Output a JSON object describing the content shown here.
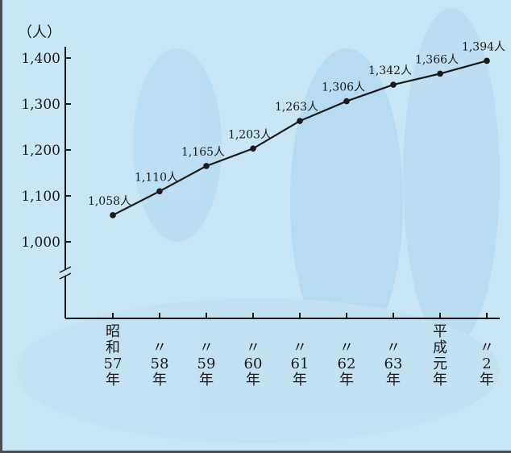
{
  "chart_data": {
    "type": "line",
    "unit": "（人）",
    "categories": [
      "昭和57年",
      "〃58年",
      "〃59年",
      "〃60年",
      "〃61年",
      "〃62年",
      "〃63年",
      "平成元年",
      "〃2年"
    ],
    "category_lines": [
      [
        "昭",
        "和",
        "57",
        "年"
      ],
      [
        "〃",
        "58",
        "年"
      ],
      [
        "〃",
        "59",
        "年"
      ],
      [
        "〃",
        "60",
        "年"
      ],
      [
        "〃",
        "61",
        "年"
      ],
      [
        "〃",
        "62",
        "年"
      ],
      [
        "〃",
        "63",
        "年"
      ],
      [
        "平",
        "成",
        "元",
        "年"
      ],
      [
        "〃",
        "2",
        "年"
      ]
    ],
    "values": [
      1058,
      1110,
      1165,
      1203,
      1263,
      1306,
      1342,
      1366,
      1394
    ],
    "data_labels": [
      "1,058人",
      "1,110人",
      "1,165人",
      "1,203人",
      "1,263人",
      "1,306人",
      "1,342人",
      "1,366人",
      "1,394人"
    ],
    "yticks": [
      1000,
      1100,
      1200,
      1300,
      1400
    ],
    "ytick_labels": [
      "1,000",
      "1,100",
      "1,200",
      "1,300",
      "1,400"
    ],
    "ylim": [
      1000,
      1400
    ],
    "axis_break": true,
    "grid": false,
    "colors": {
      "line": "#1a1a1a",
      "background": "#c9e6f6",
      "axis": "#1a1a1a"
    }
  }
}
